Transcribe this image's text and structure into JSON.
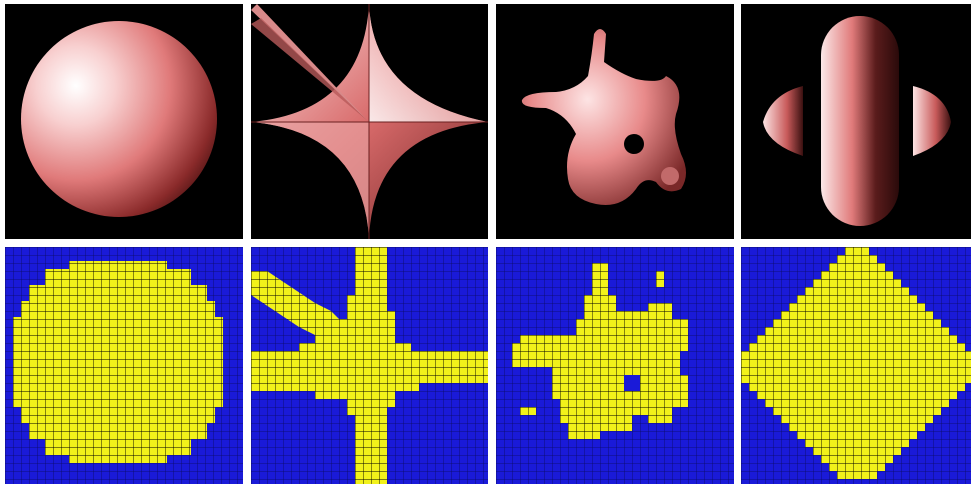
{
  "figure": {
    "rows": [
      "rendered-surfaces",
      "voxel-grids"
    ],
    "shapes": [
      "sphere",
      "astroid-star",
      "blob",
      "pill-with-lobes"
    ],
    "colors": {
      "render_background": "#000000",
      "surface_light": "#fde8e8",
      "surface_mid": "#e06a6a",
      "surface_dark": "#4a1a1a",
      "voxel_background": "#1a1ad8",
      "voxel_fill": "#f2f21a",
      "voxel_gridline": "#000000"
    }
  }
}
